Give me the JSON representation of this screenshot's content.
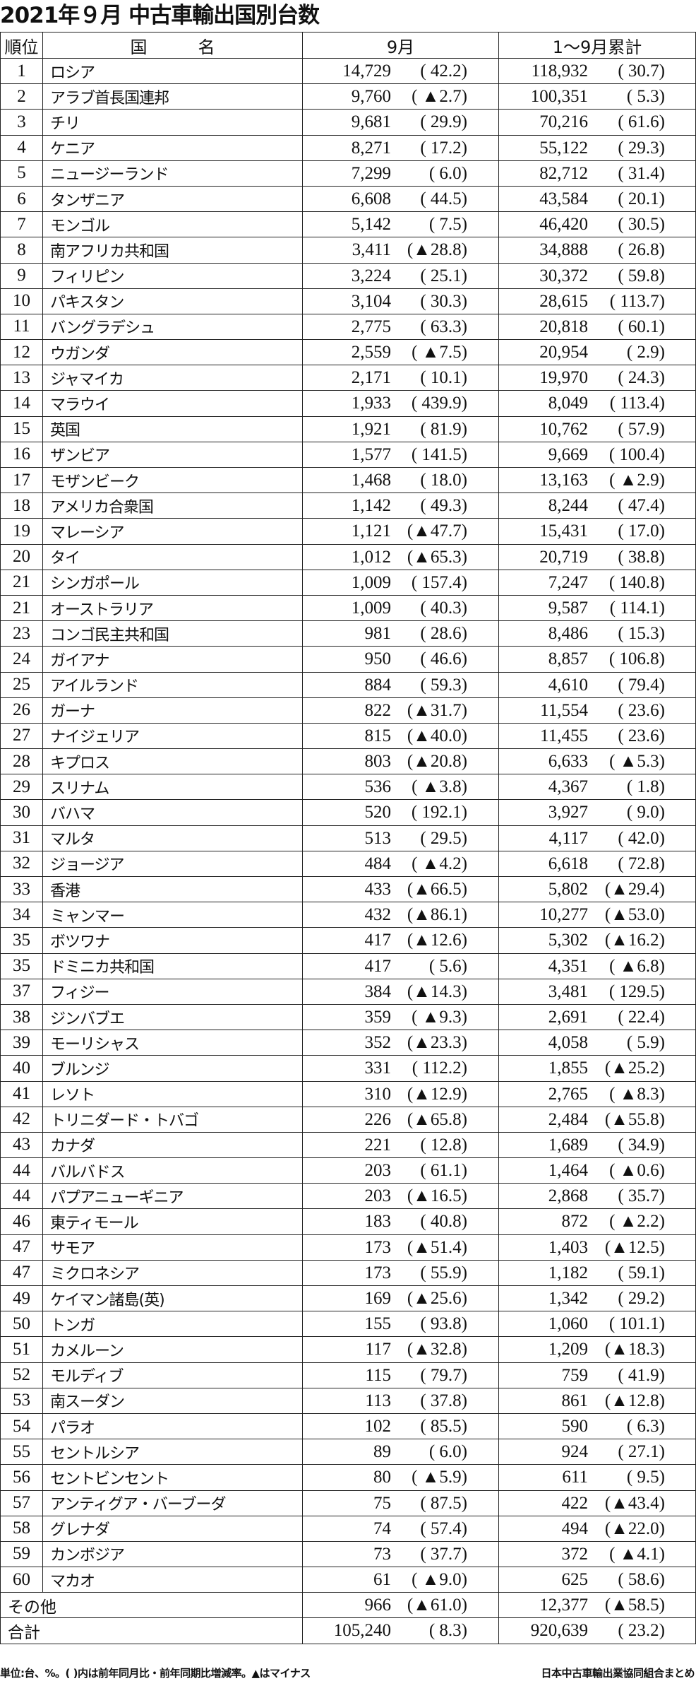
{
  "title": "2021年９月 中古車輸出国別台数",
  "headers": {
    "rank": "順位",
    "country": "国　　　名",
    "month": "9月",
    "cumulative": "1～9月累計"
  },
  "rows": [
    {
      "rank": "1",
      "country": "ロシア",
      "sep": "14,729",
      "sep_pct": "( 42.2)",
      "cum": "118,932",
      "cum_pct": "( 30.7)"
    },
    {
      "rank": "2",
      "country": "アラブ首長国連邦",
      "sep": "9,760",
      "sep_pct": "( ▲2.7)",
      "cum": "100,351",
      "cum_pct": "( 5.3)"
    },
    {
      "rank": "3",
      "country": "チリ",
      "sep": "9,681",
      "sep_pct": "( 29.9)",
      "cum": "70,216",
      "cum_pct": "( 61.6)"
    },
    {
      "rank": "4",
      "country": "ケニア",
      "sep": "8,271",
      "sep_pct": "( 17.2)",
      "cum": "55,122",
      "cum_pct": "( 29.3)"
    },
    {
      "rank": "5",
      "country": "ニュージーランド",
      "sep": "7,299",
      "sep_pct": "( 6.0)",
      "cum": "82,712",
      "cum_pct": "( 31.4)"
    },
    {
      "rank": "6",
      "country": "タンザニア",
      "sep": "6,608",
      "sep_pct": "( 44.5)",
      "cum": "43,584",
      "cum_pct": "( 20.1)"
    },
    {
      "rank": "7",
      "country": "モンゴル",
      "sep": "5,142",
      "sep_pct": "( 7.5)",
      "cum": "46,420",
      "cum_pct": "( 30.5)"
    },
    {
      "rank": "8",
      "country": "南アフリカ共和国",
      "sep": "3,411",
      "sep_pct": "(▲28.8)",
      "cum": "34,888",
      "cum_pct": "( 26.8)"
    },
    {
      "rank": "9",
      "country": "フィリピン",
      "sep": "3,224",
      "sep_pct": "( 25.1)",
      "cum": "30,372",
      "cum_pct": "( 59.8)"
    },
    {
      "rank": "10",
      "country": "パキスタン",
      "sep": "3,104",
      "sep_pct": "( 30.3)",
      "cum": "28,615",
      "cum_pct": "( 113.7)"
    },
    {
      "rank": "11",
      "country": "バングラデシュ",
      "sep": "2,775",
      "sep_pct": "( 63.3)",
      "cum": "20,818",
      "cum_pct": "( 60.1)"
    },
    {
      "rank": "12",
      "country": "ウガンダ",
      "sep": "2,559",
      "sep_pct": "( ▲7.5)",
      "cum": "20,954",
      "cum_pct": "( 2.9)"
    },
    {
      "rank": "13",
      "country": "ジャマイカ",
      "sep": "2,171",
      "sep_pct": "( 10.1)",
      "cum": "19,970",
      "cum_pct": "( 24.3)"
    },
    {
      "rank": "14",
      "country": "マラウイ",
      "sep": "1,933",
      "sep_pct": "( 439.9)",
      "cum": "8,049",
      "cum_pct": "( 113.4)"
    },
    {
      "rank": "15",
      "country": "英国",
      "sep": "1,921",
      "sep_pct": "( 81.9)",
      "cum": "10,762",
      "cum_pct": "( 57.9)"
    },
    {
      "rank": "16",
      "country": "ザンビア",
      "sep": "1,577",
      "sep_pct": "( 141.5)",
      "cum": "9,669",
      "cum_pct": "( 100.4)"
    },
    {
      "rank": "17",
      "country": "モザンビーク",
      "sep": "1,468",
      "sep_pct": "( 18.0)",
      "cum": "13,163",
      "cum_pct": "( ▲2.9)"
    },
    {
      "rank": "18",
      "country": "アメリカ合衆国",
      "sep": "1,142",
      "sep_pct": "( 49.3)",
      "cum": "8,244",
      "cum_pct": "( 47.4)"
    },
    {
      "rank": "19",
      "country": "マレーシア",
      "sep": "1,121",
      "sep_pct": "(▲47.7)",
      "cum": "15,431",
      "cum_pct": "( 17.0)"
    },
    {
      "rank": "20",
      "country": "タイ",
      "sep": "1,012",
      "sep_pct": "(▲65.3)",
      "cum": "20,719",
      "cum_pct": "( 38.8)"
    },
    {
      "rank": "21",
      "country": "シンガポール",
      "sep": "1,009",
      "sep_pct": "( 157.4)",
      "cum": "7,247",
      "cum_pct": "( 140.8)"
    },
    {
      "rank": "21",
      "country": "オーストラリア",
      "sep": "1,009",
      "sep_pct": "( 40.3)",
      "cum": "9,587",
      "cum_pct": "( 114.1)"
    },
    {
      "rank": "23",
      "country": "コンゴ民主共和国",
      "sep": "981",
      "sep_pct": "( 28.6)",
      "cum": "8,486",
      "cum_pct": "( 15.3)"
    },
    {
      "rank": "24",
      "country": "ガイアナ",
      "sep": "950",
      "sep_pct": "( 46.6)",
      "cum": "8,857",
      "cum_pct": "( 106.8)"
    },
    {
      "rank": "25",
      "country": "アイルランド",
      "sep": "884",
      "sep_pct": "( 59.3)",
      "cum": "4,610",
      "cum_pct": "( 79.4)"
    },
    {
      "rank": "26",
      "country": "ガーナ",
      "sep": "822",
      "sep_pct": "(▲31.7)",
      "cum": "11,554",
      "cum_pct": "( 23.6)"
    },
    {
      "rank": "27",
      "country": "ナイジェリア",
      "sep": "815",
      "sep_pct": "(▲40.0)",
      "cum": "11,455",
      "cum_pct": "( 23.6)"
    },
    {
      "rank": "28",
      "country": "キプロス",
      "sep": "803",
      "sep_pct": "(▲20.8)",
      "cum": "6,633",
      "cum_pct": "( ▲5.3)"
    },
    {
      "rank": "29",
      "country": "スリナム",
      "sep": "536",
      "sep_pct": "( ▲3.8)",
      "cum": "4,367",
      "cum_pct": "( 1.8)"
    },
    {
      "rank": "30",
      "country": "バハマ",
      "sep": "520",
      "sep_pct": "( 192.1)",
      "cum": "3,927",
      "cum_pct": "( 9.0)"
    },
    {
      "rank": "31",
      "country": "マルタ",
      "sep": "513",
      "sep_pct": "( 29.5)",
      "cum": "4,117",
      "cum_pct": "( 42.0)"
    },
    {
      "rank": "32",
      "country": "ジョージア",
      "sep": "484",
      "sep_pct": "( ▲4.2)",
      "cum": "6,618",
      "cum_pct": "( 72.8)"
    },
    {
      "rank": "33",
      "country": "香港",
      "sep": "433",
      "sep_pct": "(▲66.5)",
      "cum": "5,802",
      "cum_pct": "(▲29.4)"
    },
    {
      "rank": "34",
      "country": "ミャンマー",
      "sep": "432",
      "sep_pct": "(▲86.1)",
      "cum": "10,277",
      "cum_pct": "(▲53.0)"
    },
    {
      "rank": "35",
      "country": "ボツワナ",
      "sep": "417",
      "sep_pct": "(▲12.6)",
      "cum": "5,302",
      "cum_pct": "(▲16.2)"
    },
    {
      "rank": "35",
      "country": "ドミニカ共和国",
      "sep": "417",
      "sep_pct": "( 5.6)",
      "cum": "4,351",
      "cum_pct": "( ▲6.8)"
    },
    {
      "rank": "37",
      "country": "フィジー",
      "sep": "384",
      "sep_pct": "(▲14.3)",
      "cum": "3,481",
      "cum_pct": "( 129.5)"
    },
    {
      "rank": "38",
      "country": "ジンバブエ",
      "sep": "359",
      "sep_pct": "( ▲9.3)",
      "cum": "2,691",
      "cum_pct": "( 22.4)"
    },
    {
      "rank": "39",
      "country": "モーリシャス",
      "sep": "352",
      "sep_pct": "(▲23.3)",
      "cum": "4,058",
      "cum_pct": "( 5.9)"
    },
    {
      "rank": "40",
      "country": "ブルンジ",
      "sep": "331",
      "sep_pct": "( 112.2)",
      "cum": "1,855",
      "cum_pct": "(▲25.2)"
    },
    {
      "rank": "41",
      "country": "レソト",
      "sep": "310",
      "sep_pct": "(▲12.9)",
      "cum": "2,765",
      "cum_pct": "( ▲8.3)"
    },
    {
      "rank": "42",
      "country": "トリニダード・トバゴ",
      "sep": "226",
      "sep_pct": "(▲65.8)",
      "cum": "2,484",
      "cum_pct": "(▲55.8)"
    },
    {
      "rank": "43",
      "country": "カナダ",
      "sep": "221",
      "sep_pct": "( 12.8)",
      "cum": "1,689",
      "cum_pct": "( 34.9)"
    },
    {
      "rank": "44",
      "country": "バルバドス",
      "sep": "203",
      "sep_pct": "( 61.1)",
      "cum": "1,464",
      "cum_pct": "( ▲0.6)"
    },
    {
      "rank": "44",
      "country": "パプアニューギニア",
      "sep": "203",
      "sep_pct": "(▲16.5)",
      "cum": "2,868",
      "cum_pct": "( 35.7)"
    },
    {
      "rank": "46",
      "country": "東ティモール",
      "sep": "183",
      "sep_pct": "( 40.8)",
      "cum": "872",
      "cum_pct": "( ▲2.2)"
    },
    {
      "rank": "47",
      "country": "サモア",
      "sep": "173",
      "sep_pct": "(▲51.4)",
      "cum": "1,403",
      "cum_pct": "(▲12.5)"
    },
    {
      "rank": "47",
      "country": "ミクロネシア",
      "sep": "173",
      "sep_pct": "( 55.9)",
      "cum": "1,182",
      "cum_pct": "( 59.1)"
    },
    {
      "rank": "49",
      "country": "ケイマン諸島(英)",
      "sep": "169",
      "sep_pct": "(▲25.6)",
      "cum": "1,342",
      "cum_pct": "( 29.2)"
    },
    {
      "rank": "50",
      "country": "トンガ",
      "sep": "155",
      "sep_pct": "( 93.8)",
      "cum": "1,060",
      "cum_pct": "( 101.1)"
    },
    {
      "rank": "51",
      "country": "カメルーン",
      "sep": "117",
      "sep_pct": "(▲32.8)",
      "cum": "1,209",
      "cum_pct": "(▲18.3)"
    },
    {
      "rank": "52",
      "country": "モルディブ",
      "sep": "115",
      "sep_pct": "( 79.7)",
      "cum": "759",
      "cum_pct": "( 41.9)"
    },
    {
      "rank": "53",
      "country": "南スーダン",
      "sep": "113",
      "sep_pct": "( 37.8)",
      "cum": "861",
      "cum_pct": "(▲12.8)"
    },
    {
      "rank": "54",
      "country": "パラオ",
      "sep": "102",
      "sep_pct": "( 85.5)",
      "cum": "590",
      "cum_pct": "( 6.3)"
    },
    {
      "rank": "55",
      "country": "セントルシア",
      "sep": "89",
      "sep_pct": "( 6.0)",
      "cum": "924",
      "cum_pct": "( 27.1)"
    },
    {
      "rank": "56",
      "country": "セントビンセント",
      "sep": "80",
      "sep_pct": "( ▲5.9)",
      "cum": "611",
      "cum_pct": "( 9.5)"
    },
    {
      "rank": "57",
      "country": "アンティグア・バーブーダ",
      "sep": "75",
      "sep_pct": "( 87.5)",
      "cum": "422",
      "cum_pct": "(▲43.4)"
    },
    {
      "rank": "58",
      "country": "グレナダ",
      "sep": "74",
      "sep_pct": "( 57.4)",
      "cum": "494",
      "cum_pct": "(▲22.0)"
    },
    {
      "rank": "59",
      "country": "カンボジア",
      "sep": "73",
      "sep_pct": "( 37.7)",
      "cum": "372",
      "cum_pct": "( ▲4.1)"
    },
    {
      "rank": "60",
      "country": "マカオ",
      "sep": "61",
      "sep_pct": "( ▲9.0)",
      "cum": "625",
      "cum_pct": "( 58.6)"
    }
  ],
  "summary": [
    {
      "label": "その他",
      "sep": "966",
      "sep_pct": "(▲61.0)",
      "cum": "12,377",
      "cum_pct": "(▲58.5)"
    },
    {
      "label": "合計",
      "sep": "105,240",
      "sep_pct": "( 8.3)",
      "cum": "920,639",
      "cum_pct": "( 23.2)"
    }
  ],
  "footnote": "単位:台、%。( )内は前年同月比・前年同期比増減率。▲はマイナス",
  "source": "日本中古車輸出業協同組合まとめ"
}
